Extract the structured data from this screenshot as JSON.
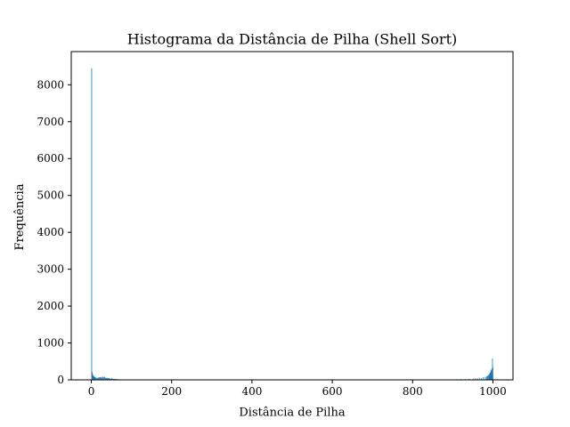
{
  "chart_data": {
    "type": "bar",
    "title": "Histograma da Distância de Pilha (Shell Sort)",
    "xlabel": "Distância de Pilha",
    "ylabel": "Frequência",
    "xlim": [
      -50,
      1050
    ],
    "ylim": [
      0,
      8900
    ],
    "xticks": [
      0,
      200,
      400,
      600,
      800,
      1000
    ],
    "yticks": [
      0,
      1000,
      2000,
      3000,
      4000,
      5000,
      6000,
      7000,
      8000
    ],
    "grid": false,
    "bar_color": "#1f77b4",
    "bin_width": 1,
    "x": [
      0,
      1,
      2,
      3,
      4,
      5,
      6,
      7,
      8,
      9,
      10,
      12,
      14,
      16,
      18,
      20,
      22,
      24,
      26,
      28,
      30,
      32,
      34,
      36,
      38,
      40,
      42,
      44,
      46,
      48,
      50,
      52,
      54,
      56,
      58,
      60,
      62,
      64,
      66,
      70,
      75,
      80,
      90,
      100,
      110,
      120,
      130,
      150,
      170,
      200,
      230,
      900,
      910,
      920,
      930,
      940,
      950,
      955,
      960,
      965,
      970,
      975,
      980,
      983,
      985,
      987,
      989,
      990,
      991,
      992,
      993,
      994,
      995,
      996,
      997,
      998,
      999
    ],
    "values": [
      8450,
      220,
      160,
      130,
      110,
      100,
      90,
      80,
      75,
      70,
      60,
      55,
      50,
      60,
      70,
      65,
      80,
      75,
      60,
      90,
      70,
      85,
      60,
      50,
      55,
      45,
      40,
      50,
      35,
      30,
      45,
      30,
      25,
      20,
      30,
      25,
      20,
      15,
      20,
      15,
      12,
      10,
      10,
      8,
      8,
      6,
      6,
      5,
      5,
      4,
      3,
      10,
      15,
      20,
      25,
      30,
      35,
      40,
      45,
      60,
      50,
      70,
      80,
      90,
      100,
      120,
      150,
      130,
      170,
      200,
      180,
      260,
      230,
      300,
      200,
      580,
      350
    ]
  }
}
